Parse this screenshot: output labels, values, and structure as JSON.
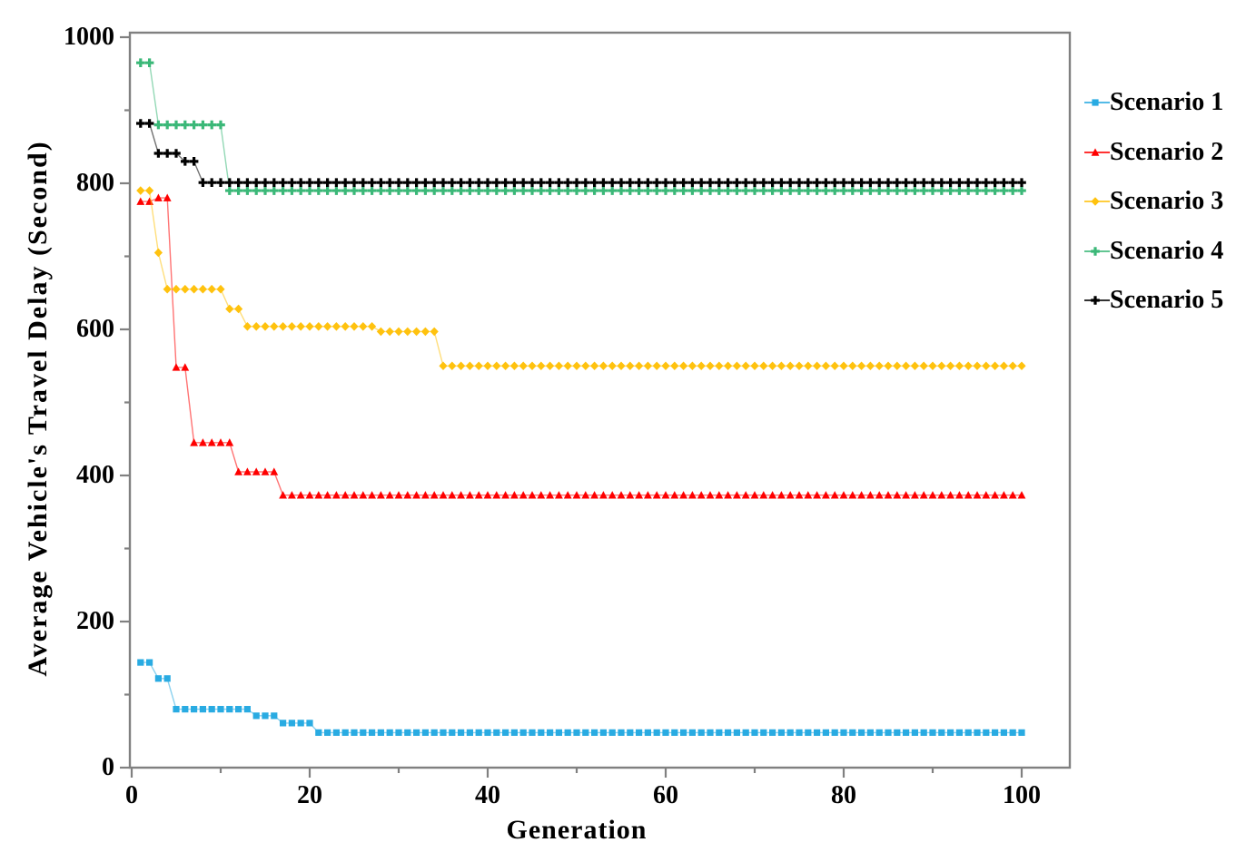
{
  "chart_data": {
    "type": "line",
    "title": "",
    "xlabel": "Generation",
    "ylabel": "Average Vehicle's Travel Delay (Second)",
    "xlim": [
      0,
      105
    ],
    "ylim": [
      0,
      1000
    ],
    "x_major_ticks": [
      0,
      20,
      40,
      60,
      80,
      100
    ],
    "x_minor_ticks": [
      10,
      30,
      50,
      70,
      90
    ],
    "y_major_ticks": [
      0,
      200,
      400,
      600,
      800,
      1000
    ],
    "y_minor_ticks": [
      100,
      300,
      500,
      700,
      900
    ],
    "grid": false,
    "legend_position": "right",
    "x_start_generation": 1,
    "x_end_generation": 100,
    "values_rle_format": "pairs of [delay_value, run_length_in_generations], generations 1..100",
    "series": [
      {
        "name": "Scenario 1",
        "color": "#29ABE2",
        "marker": "square",
        "values_rle": [
          [
            144,
            2
          ],
          [
            122,
            2
          ],
          [
            80,
            9
          ],
          [
            71,
            3
          ],
          [
            61,
            4
          ],
          [
            48,
            80
          ]
        ]
      },
      {
        "name": "Scenario 2",
        "color": "#FF0000",
        "marker": "triangle",
        "values_rle": [
          [
            775,
            2
          ],
          [
            780,
            2
          ],
          [
            548,
            2
          ],
          [
            445,
            5
          ],
          [
            405,
            5
          ],
          [
            373,
            84
          ]
        ]
      },
      {
        "name": "Scenario 3",
        "color": "#FFC20E",
        "marker": "diamond",
        "values_rle": [
          [
            790,
            2
          ],
          [
            705,
            1
          ],
          [
            655,
            7
          ],
          [
            628,
            2
          ],
          [
            604,
            15
          ],
          [
            597,
            7
          ],
          [
            550,
            66
          ]
        ]
      },
      {
        "name": "Scenario 4",
        "color": "#3BB878",
        "marker": "plus",
        "values_rle": [
          [
            965,
            2
          ],
          [
            880,
            8
          ],
          [
            790,
            90
          ]
        ]
      },
      {
        "name": "Scenario 5",
        "color": "#000000",
        "marker": "plus",
        "values_rle": [
          [
            882,
            2
          ],
          [
            841,
            3
          ],
          [
            830,
            2
          ],
          [
            801,
            93
          ]
        ]
      }
    ],
    "axis_color": "#808080",
    "text_color": "#000000"
  }
}
